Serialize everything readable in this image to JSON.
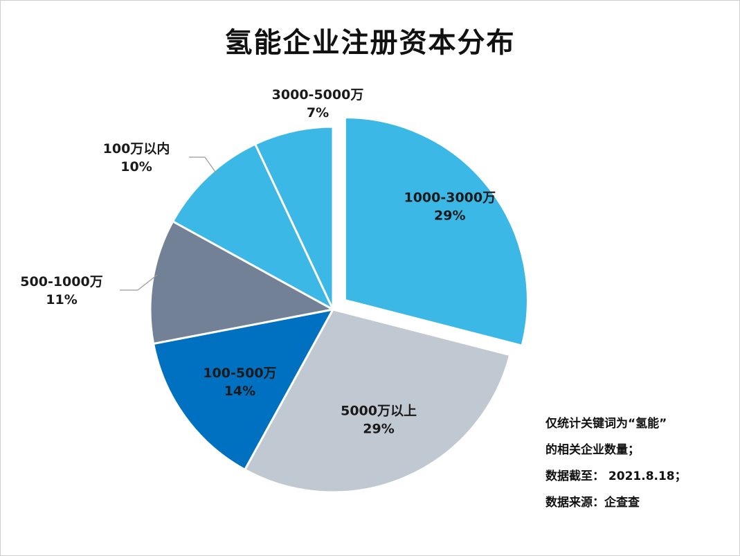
{
  "chart_data": {
    "type": "pie",
    "title": "氢能企业注册资本分布",
    "start": "top",
    "direction": "clockwise",
    "slices": [
      {
        "label": "1000-3000万",
        "value": 29,
        "display": "29%",
        "color": "#3BB8E6",
        "exploded": true,
        "label_position": "inside"
      },
      {
        "label": "5000万以上",
        "value": 29,
        "display": "29%",
        "color": "#C0C8D2",
        "exploded": false,
        "label_position": "inside"
      },
      {
        "label": "100-500万",
        "value": 14,
        "display": "14%",
        "color": "#0070C0",
        "exploded": false,
        "label_position": "inside"
      },
      {
        "label": "500-1000万",
        "value": 11,
        "display": "11%",
        "color": "#738196",
        "exploded": false,
        "label_position": "outside"
      },
      {
        "label": "100万以内",
        "value": 10,
        "display": "10%",
        "color": "#3BB8E6",
        "exploded": false,
        "label_position": "outside"
      },
      {
        "label": "3000-5000万",
        "value": 7,
        "display": "7%",
        "color": "#3BB8E6",
        "exploded": false,
        "label_position": "outside"
      }
    ]
  },
  "note": [
    "仅统计关键词为“氢能”",
    "的相关企业数量；",
    "数据截至：  2021.8.18；",
    "数据来源：企查查"
  ]
}
